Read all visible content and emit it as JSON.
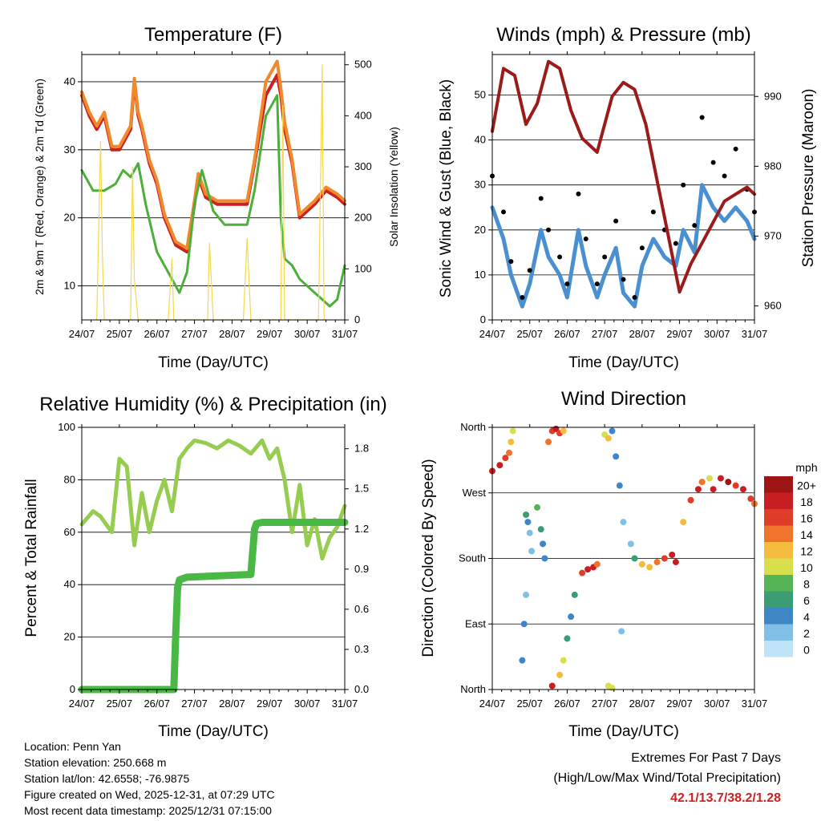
{
  "xticks": [
    "24/07",
    "25/07",
    "26/07",
    "27/07",
    "28/07",
    "29/07",
    "30/07",
    "31/07"
  ],
  "temp": {
    "title": "Temperature (F)",
    "ylabel": "2m & 9m T (Red, Orange) & 2m Td (Green)",
    "y2label": "Solar Insolation (Yellow)",
    "xlabel": "Time (Day/UTC)",
    "yticks": [
      "10",
      "20",
      "30",
      "40"
    ],
    "y2ticks": [
      "0",
      "100",
      "200",
      "300",
      "400",
      "500"
    ]
  },
  "wind": {
    "title": "Winds (mph) & Pressure (mb)",
    "ylabel": "Sonic Wind & Gust (Blue, Black)",
    "y2label": "Station Pressure (Maroon)",
    "xlabel": "Time (Day/UTC)",
    "yticks": [
      "0",
      "10",
      "20",
      "30",
      "40",
      "50"
    ],
    "y2ticks": [
      "960",
      "970",
      "980",
      "990"
    ]
  },
  "rh": {
    "title": "Relative Humidity (%) & Precipitation (in)",
    "ylabel": "Percent & Total Rainfall",
    "xlabel": "Time (Day/UTC)",
    "yticks": [
      "0",
      "20",
      "40",
      "60",
      "80",
      "100"
    ],
    "y2ticks": [
      "0.0",
      "0.3",
      "0.6",
      "0.9",
      "1.2",
      "1.5",
      "1.8"
    ]
  },
  "dir": {
    "title": "Wind Direction",
    "ylabel": "Direction (Colored By Speed)",
    "xlabel": "Time (Day/UTC)",
    "yticks": [
      "North",
      "East",
      "South",
      "West",
      "North"
    ],
    "legend_title": "mph",
    "legend_labels": [
      "0",
      "2",
      "4",
      "6",
      "8",
      "10",
      "12",
      "14",
      "16",
      "18",
      "20+"
    ],
    "legend_colors": [
      "#bfe3f7",
      "#82bfe6",
      "#3f86c6",
      "#3a9d74",
      "#55b455",
      "#d7df4c",
      "#f5bb3c",
      "#ef742b",
      "#df3d27",
      "#c81e22",
      "#9f1515"
    ]
  },
  "info": {
    "location": "Location: Penn Yan",
    "elevation": "Station elevation: 250.668 m",
    "latlon": "Station lat/lon: 42.6558; -76.9875",
    "created": "Figure created on Wed, 2025-12-31, at 07:29 UTC",
    "recent": "Most recent data timestamp: 2025/12/31 07:15:00"
  },
  "extremes": {
    "line1": "Extremes For Past 7 Days",
    "line2": "(High/Low/Max Wind/Total Precipitation)",
    "values": "42.1/13.7/38.2/1.28"
  },
  "chart_data": [
    {
      "type": "line",
      "title": "Temperature (F)",
      "x_unit": "days since 24/07 00 UTC",
      "ylim": [
        5,
        44
      ],
      "y2lim": [
        0,
        520
      ],
      "series": [
        {
          "name": "2m T",
          "color": "#cc1f1f",
          "x": [
            0,
            0.2,
            0.4,
            0.6,
            0.8,
            1.0,
            1.3,
            1.4,
            1.5,
            1.6,
            1.8,
            2.0,
            2.2,
            2.5,
            2.8,
            3.0,
            3.1,
            3.3,
            3.6,
            3.9,
            4.2,
            4.4,
            4.6,
            4.9,
            5.1,
            5.2,
            5.3,
            5.4,
            5.6,
            5.8,
            6.0,
            6.2,
            6.5,
            6.8,
            7.0
          ],
          "y": [
            38,
            35,
            33,
            35,
            30,
            30,
            33,
            40,
            35,
            33,
            28,
            25,
            20,
            16,
            15,
            22,
            26,
            23,
            22,
            22,
            22,
            22,
            28,
            38,
            40,
            41,
            38,
            33,
            28,
            20,
            21,
            22,
            24,
            23,
            22
          ]
        },
        {
          "name": "9m T",
          "color": "#f0892b",
          "x": [
            0,
            0.2,
            0.4,
            0.6,
            0.8,
            1.0,
            1.3,
            1.4,
            1.5,
            1.6,
            1.8,
            2.0,
            2.2,
            2.5,
            2.8,
            3.0,
            3.1,
            3.3,
            3.6,
            3.9,
            4.2,
            4.4,
            4.6,
            4.9,
            5.1,
            5.2,
            5.3,
            5.4,
            5.6,
            5.8,
            6.0,
            6.2,
            6.5,
            6.8,
            7.0
          ],
          "y": [
            38.5,
            35.5,
            33.5,
            35.5,
            30.5,
            30.5,
            33.5,
            40.5,
            35.5,
            33.5,
            28.5,
            25.5,
            20.5,
            16.5,
            15.5,
            22.5,
            26.5,
            23.5,
            22.5,
            22.5,
            22.5,
            22.5,
            28.5,
            40,
            42,
            43,
            39,
            34,
            28.5,
            20.5,
            21.5,
            22.5,
            24.5,
            23.5,
            22.5
          ]
        },
        {
          "name": "2m Td",
          "color": "#4caf3a",
          "x": [
            0,
            0.3,
            0.6,
            0.9,
            1.1,
            1.3,
            1.5,
            1.7,
            2.0,
            2.3,
            2.6,
            2.8,
            3.0,
            3.2,
            3.5,
            3.8,
            4.1,
            4.4,
            4.6,
            4.9,
            5.2,
            5.3,
            5.4,
            5.6,
            5.8,
            6.0,
            6.2,
            6.4,
            6.6,
            6.8,
            7.0
          ],
          "y": [
            27,
            24,
            24,
            25,
            27,
            26,
            28,
            22,
            15,
            12,
            9,
            12,
            22,
            27,
            21,
            19,
            19,
            19,
            24,
            35,
            38,
            20,
            14,
            13,
            11,
            10,
            9,
            8,
            7,
            8,
            13
          ]
        },
        {
          "name": "Solar Insolation",
          "axis": "y2",
          "color": "#f5d94a",
          "x": [
            0.4,
            0.5,
            0.55,
            0.6,
            1.3,
            1.35,
            1.4,
            1.5,
            2.3,
            2.4,
            2.45,
            3.35,
            3.4,
            3.5,
            4.3,
            4.4,
            4.5,
            5.3,
            5.35,
            5.4,
            6.3,
            6.4,
            6.45
          ],
          "y": [
            0,
            350,
            120,
            0,
            0,
            300,
            80,
            0,
            0,
            120,
            0,
            0,
            150,
            0,
            0,
            160,
            0,
            0,
            420,
            0,
            0,
            500,
            0
          ]
        }
      ]
    },
    {
      "type": "line",
      "title": "Winds (mph) & Pressure (mb)",
      "ylim": [
        0,
        59
      ],
      "y2lim": [
        958,
        996
      ],
      "series": [
        {
          "name": "Sonic Wind",
          "color": "#4a90d0",
          "x": [
            0,
            0.3,
            0.5,
            0.8,
            1.0,
            1.3,
            1.5,
            1.8,
            2.0,
            2.3,
            2.5,
            2.8,
            3.0,
            3.3,
            3.5,
            3.8,
            4.0,
            4.3,
            4.6,
            4.9,
            5.1,
            5.4,
            5.6,
            5.9,
            6.2,
            6.5,
            6.8,
            7.0
          ],
          "y": [
            25,
            18,
            10,
            3,
            8,
            20,
            14,
            10,
            5,
            20,
            12,
            5,
            10,
            16,
            6,
            3,
            12,
            18,
            14,
            12,
            20,
            15,
            30,
            25,
            22,
            25,
            22,
            18
          ]
        },
        {
          "name": "Gust",
          "color": "#000000",
          "x": [
            0,
            0.3,
            0.5,
            0.8,
            1.0,
            1.3,
            1.5,
            1.8,
            2.0,
            2.3,
            2.5,
            2.8,
            3.0,
            3.3,
            3.5,
            3.8,
            4.0,
            4.3,
            4.6,
            4.9,
            5.1,
            5.4,
            5.6,
            5.9,
            6.2,
            6.5,
            6.8,
            7.0
          ],
          "y": [
            32,
            24,
            13,
            5,
            11,
            27,
            20,
            14,
            8,
            28,
            18,
            8,
            14,
            22,
            9,
            5,
            16,
            24,
            20,
            17,
            30,
            21,
            45,
            35,
            32,
            38,
            29,
            24
          ]
        },
        {
          "name": "Station Pressure",
          "axis": "y2",
          "color": "#9b1b1b",
          "x": [
            0,
            0.3,
            0.6,
            0.9,
            1.2,
            1.5,
            1.8,
            2.1,
            2.4,
            2.8,
            3.2,
            3.5,
            3.8,
            4.1,
            4.4,
            4.7,
            5.0,
            5.3,
            5.6,
            5.9,
            6.2,
            6.5,
            6.8,
            7.0
          ],
          "y": [
            985,
            994,
            993,
            986,
            989,
            995,
            994,
            988,
            984,
            982,
            990,
            992,
            991,
            986,
            978,
            970,
            962,
            966,
            969,
            972,
            975,
            976,
            977,
            976
          ]
        }
      ]
    },
    {
      "type": "line",
      "title": "Relative Humidity (%) & Precipitation (in)",
      "ylim": [
        0,
        100
      ],
      "y2lim": [
        0,
        1.96
      ],
      "series": [
        {
          "name": "Relative Humidity",
          "color": "#96cc50",
          "x": [
            0,
            0.3,
            0.5,
            0.8,
            1.0,
            1.2,
            1.4,
            1.6,
            1.8,
            2.0,
            2.2,
            2.4,
            2.6,
            2.8,
            3.0,
            3.3,
            3.6,
            3.9,
            4.2,
            4.5,
            4.8,
            5.0,
            5.2,
            5.4,
            5.6,
            5.8,
            6.0,
            6.2,
            6.4,
            6.6,
            6.8,
            7.0
          ],
          "y": [
            63,
            68,
            66,
            60,
            88,
            85,
            55,
            75,
            60,
            72,
            80,
            68,
            88,
            92,
            95,
            94,
            92,
            95,
            93,
            90,
            95,
            88,
            92,
            80,
            60,
            78,
            55,
            65,
            50,
            58,
            62,
            70
          ]
        },
        {
          "name": "Total Rainfall",
          "axis": "y2",
          "color": "#4ab844",
          "x": [
            0,
            2.45,
            2.5,
            2.55,
            2.6,
            2.8,
            4.5,
            4.6,
            4.65,
            4.8,
            7.0
          ],
          "y": [
            0,
            0,
            0.4,
            0.76,
            0.82,
            0.84,
            0.86,
            1.2,
            1.24,
            1.25,
            1.25
          ]
        }
      ]
    },
    {
      "type": "scatter",
      "title": "Wind Direction",
      "y_unit": "degrees (0=North, 90=East, 180=South, 270=West, 360=North)",
      "ylim": [
        0,
        360
      ],
      "color_by": "speed (mph)",
      "points": [
        {
          "x": 0.0,
          "y": 300,
          "s": 18
        },
        {
          "x": 0.2,
          "y": 308,
          "s": 19
        },
        {
          "x": 0.35,
          "y": 318,
          "s": 17
        },
        {
          "x": 0.45,
          "y": 325,
          "s": 15
        },
        {
          "x": 0.5,
          "y": 340,
          "s": 12
        },
        {
          "x": 0.55,
          "y": 355,
          "s": 10
        },
        {
          "x": 0.9,
          "y": 240,
          "s": 6
        },
        {
          "x": 0.95,
          "y": 230,
          "s": 4
        },
        {
          "x": 1.0,
          "y": 215,
          "s": 3
        },
        {
          "x": 1.05,
          "y": 190,
          "s": 2
        },
        {
          "x": 0.9,
          "y": 130,
          "s": 3
        },
        {
          "x": 0.85,
          "y": 90,
          "s": 4
        },
        {
          "x": 0.8,
          "y": 40,
          "s": 5
        },
        {
          "x": 1.2,
          "y": 250,
          "s": 8
        },
        {
          "x": 1.3,
          "y": 220,
          "s": 7
        },
        {
          "x": 1.35,
          "y": 200,
          "s": 5
        },
        {
          "x": 1.4,
          "y": 180,
          "s": 4
        },
        {
          "x": 1.5,
          "y": 340,
          "s": 14
        },
        {
          "x": 1.6,
          "y": 355,
          "s": 17
        },
        {
          "x": 1.7,
          "y": 358,
          "s": 18
        },
        {
          "x": 1.8,
          "y": 352,
          "s": 16
        },
        {
          "x": 1.9,
          "y": 355,
          "s": 12
        },
        {
          "x": 1.6,
          "y": 5,
          "s": 18
        },
        {
          "x": 1.8,
          "y": 20,
          "s": 12
        },
        {
          "x": 1.9,
          "y": 40,
          "s": 10
        },
        {
          "x": 2.0,
          "y": 70,
          "s": 6
        },
        {
          "x": 2.1,
          "y": 100,
          "s": 5
        },
        {
          "x": 2.2,
          "y": 130,
          "s": 7
        },
        {
          "x": 2.4,
          "y": 160,
          "s": 16
        },
        {
          "x": 2.55,
          "y": 165,
          "s": 18
        },
        {
          "x": 2.7,
          "y": 168,
          "s": 19
        },
        {
          "x": 2.8,
          "y": 172,
          "s": 14
        },
        {
          "x": 3.0,
          "y": 350,
          "s": 11
        },
        {
          "x": 3.1,
          "y": 345,
          "s": 12
        },
        {
          "x": 3.2,
          "y": 355,
          "s": 4
        },
        {
          "x": 3.3,
          "y": 320,
          "s": 5
        },
        {
          "x": 3.4,
          "y": 280,
          "s": 4
        },
        {
          "x": 3.5,
          "y": 230,
          "s": 3
        },
        {
          "x": 3.45,
          "y": 80,
          "s": 3
        },
        {
          "x": 3.1,
          "y": 5,
          "s": 10
        },
        {
          "x": 3.2,
          "y": 2,
          "s": 11
        },
        {
          "x": 3.7,
          "y": 200,
          "s": 2
        },
        {
          "x": 3.8,
          "y": 180,
          "s": 7
        },
        {
          "x": 4.0,
          "y": 172,
          "s": 12
        },
        {
          "x": 4.2,
          "y": 168,
          "s": 13
        },
        {
          "x": 4.4,
          "y": 175,
          "s": 14
        },
        {
          "x": 4.6,
          "y": 180,
          "s": 16
        },
        {
          "x": 4.8,
          "y": 185,
          "s": 19
        },
        {
          "x": 4.9,
          "y": 175,
          "s": 18
        },
        {
          "x": 5.1,
          "y": 230,
          "s": 12
        },
        {
          "x": 5.3,
          "y": 260,
          "s": 16
        },
        {
          "x": 5.5,
          "y": 275,
          "s": 18
        },
        {
          "x": 5.6,
          "y": 285,
          "s": 14
        },
        {
          "x": 5.8,
          "y": 290,
          "s": 11
        },
        {
          "x": 5.9,
          "y": 275,
          "s": 18
        },
        {
          "x": 6.1,
          "y": 290,
          "s": 19
        },
        {
          "x": 6.3,
          "y": 285,
          "s": 20
        },
        {
          "x": 6.5,
          "y": 280,
          "s": 17
        },
        {
          "x": 6.7,
          "y": 275,
          "s": 18
        },
        {
          "x": 6.9,
          "y": 262,
          "s": 16
        },
        {
          "x": 7.0,
          "y": 255,
          "s": 14
        }
      ]
    }
  ]
}
